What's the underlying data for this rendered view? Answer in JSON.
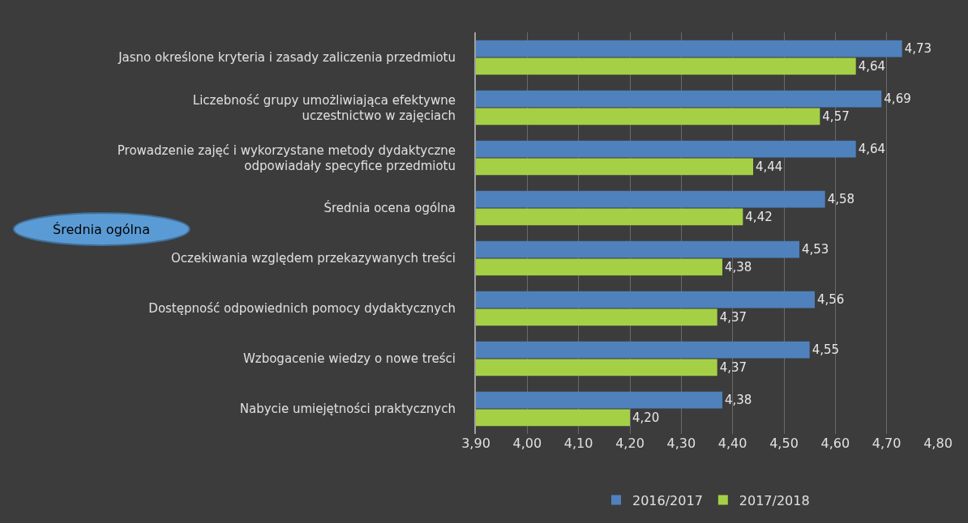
{
  "chart_data": {
    "type": "bar",
    "orientation": "horizontal",
    "categories": [
      "Jasno określone kryteria i zasady zaliczenia przedmiotu",
      "Liczebność grupy umożliwiająca efektywne\nuczestnictwo w zajęciach",
      "Prowadzenie zajęć i wykorzystane metody dydaktyczne\nodpowiadały specyfice przedmiotu",
      "Średnia ocena ogólna",
      "Oczekiwania względem przekazywanych treści",
      "Dostępność odpowiednich pomocy dydaktycznych",
      "Wzbogacenie wiedzy o nowe treści",
      "Nabycie umiejętności praktycznych"
    ],
    "series": [
      {
        "name": "2016/2017",
        "color": "#4f81bd",
        "values": [
          4.73,
          4.69,
          4.64,
          4.58,
          4.53,
          4.56,
          4.55,
          4.38
        ],
        "value_labels": [
          "4,73",
          "4,69",
          "4,64",
          "4,58",
          "4,53",
          "4,56",
          "4,55",
          "4,38"
        ]
      },
      {
        "name": "2017/2018",
        "color": "#a5d046",
        "values": [
          4.64,
          4.57,
          4.44,
          4.42,
          4.38,
          4.37,
          4.37,
          4.2
        ],
        "value_labels": [
          "4,64",
          "4,57",
          "4,44",
          "4,42",
          "4,38",
          "4,37",
          "4,37",
          "4,20"
        ]
      }
    ],
    "xlim": [
      3.9,
      4.8
    ],
    "xticks": [
      {
        "value": 3.9,
        "label": "3,90"
      },
      {
        "value": 4.0,
        "label": "4,00"
      },
      {
        "value": 4.1,
        "label": "4,10"
      },
      {
        "value": 4.2,
        "label": "4,20"
      },
      {
        "value": 4.3,
        "label": "4,30"
      },
      {
        "value": 4.4,
        "label": "4,40"
      },
      {
        "value": 4.5,
        "label": "4,50"
      },
      {
        "value": 4.6,
        "label": "4,60"
      },
      {
        "value": 4.7,
        "label": "4,70"
      },
      {
        "value": 4.8,
        "label": "4,80"
      }
    ],
    "annotations": [
      "Średnia ogólna"
    ],
    "grid": "x",
    "legend": "bottom"
  }
}
